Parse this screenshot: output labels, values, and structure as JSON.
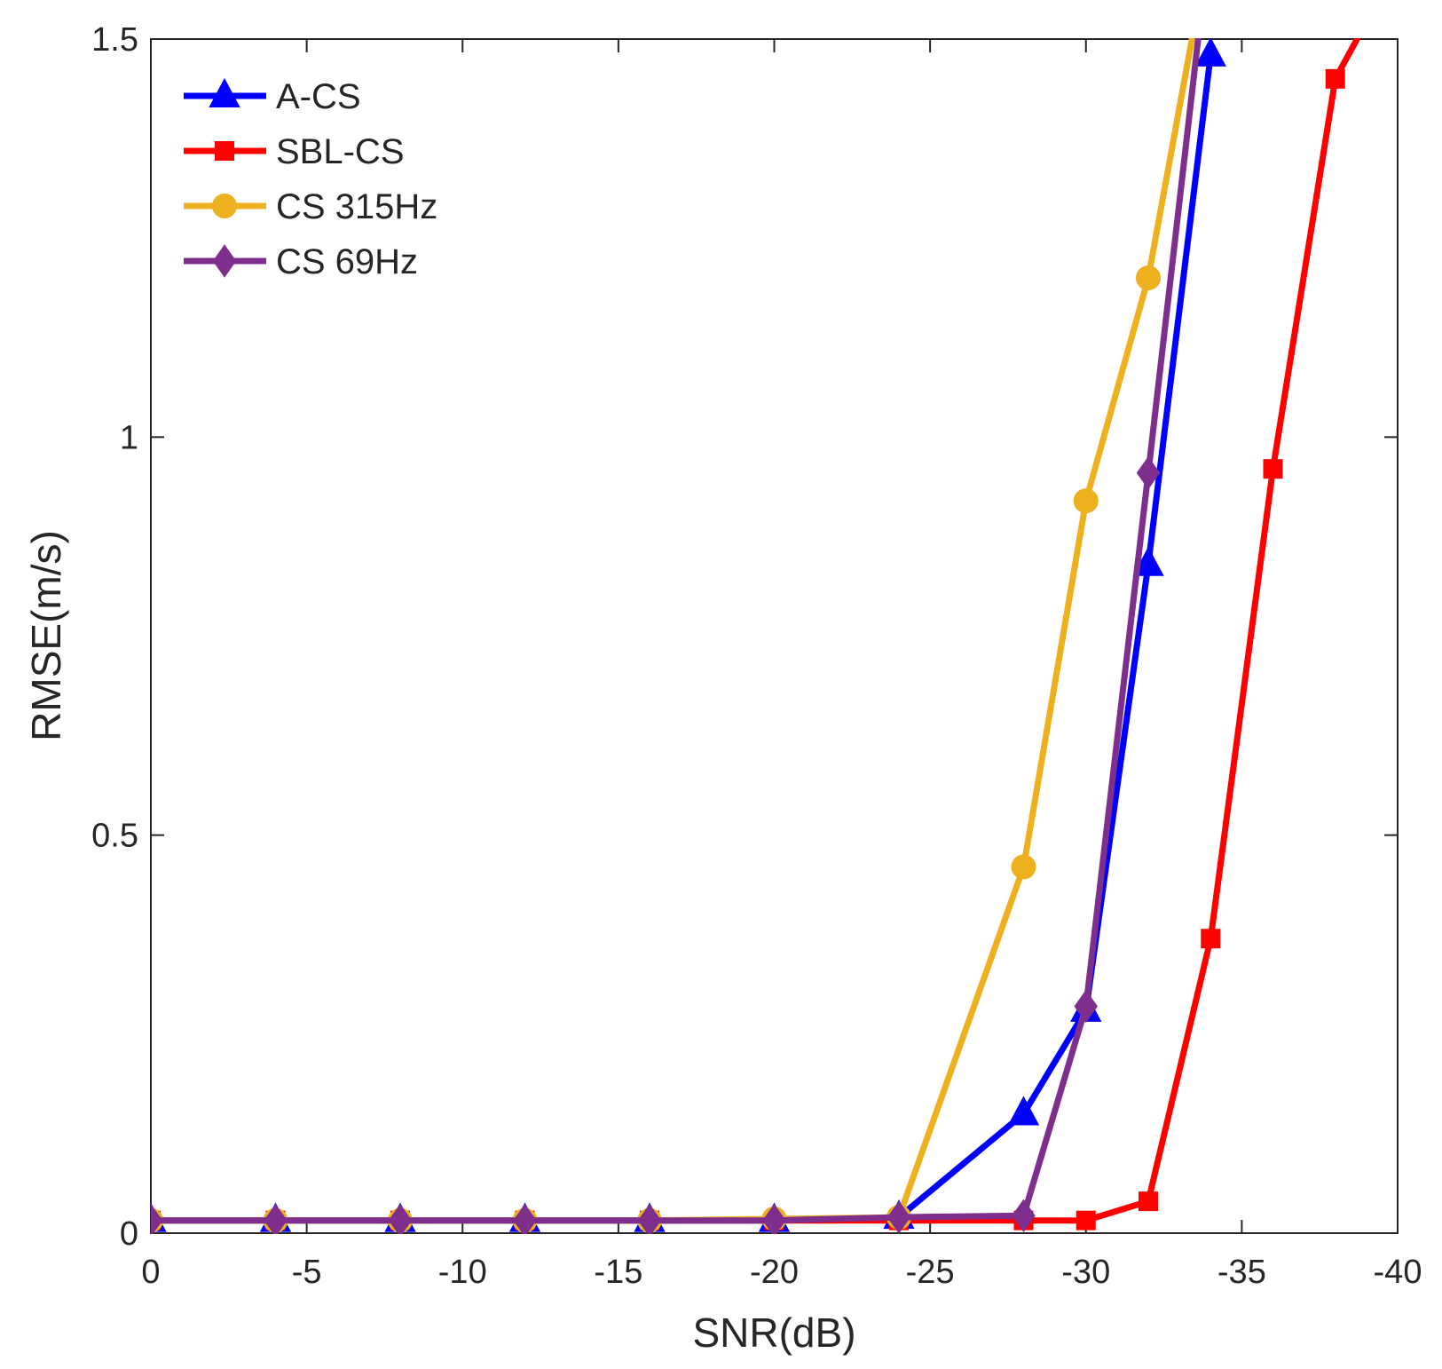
{
  "chart_data": {
    "type": "line",
    "title": "",
    "xlabel": "SNR(dB)",
    "ylabel": "RMSE(m/s)",
    "xlim": [
      0,
      -40
    ],
    "ylim": [
      0,
      1.5
    ],
    "xticks": [
      0,
      -5,
      -10,
      -15,
      -20,
      -25,
      -30,
      -35,
      -40
    ],
    "yticks": [
      0,
      0.5,
      1,
      1.5
    ],
    "xtick_labels": [
      "0",
      "-5",
      "-10",
      "-15",
      "-20",
      "-25",
      "-30",
      "-35",
      "-40"
    ],
    "ytick_labels": [
      "0",
      "0.5",
      "1",
      "1.5"
    ],
    "grid": false,
    "legend_position": "top-left",
    "series": [
      {
        "name": "A-CS",
        "color": "#0000ff",
        "marker": "triangle",
        "x": [
          0,
          -4,
          -8,
          -12,
          -16,
          -20,
          -24,
          -28,
          -30,
          -32,
          -34
        ],
        "y": [
          0.016,
          0.016,
          0.016,
          0.016,
          0.016,
          0.016,
          0.02,
          0.15,
          0.28,
          0.84,
          1.48
        ]
      },
      {
        "name": "SBL-CS",
        "color": "#ff0000",
        "marker": "square",
        "x": [
          0,
          -4,
          -8,
          -12,
          -16,
          -20,
          -24,
          -28,
          -30,
          -32,
          -34,
          -36,
          -38,
          -38.7
        ],
        "y": [
          0.016,
          0.016,
          0.016,
          0.016,
          0.016,
          0.016,
          0.016,
          0.016,
          0.016,
          0.04,
          0.37,
          0.96,
          1.45,
          1.5
        ]
      },
      {
        "name": "CS 315Hz",
        "color": "#edb120",
        "marker": "circle",
        "x": [
          0,
          -4,
          -8,
          -12,
          -16,
          -20,
          -24,
          -28,
          -30,
          -32,
          -33.4
        ],
        "y": [
          0.016,
          0.016,
          0.016,
          0.016,
          0.016,
          0.018,
          0.02,
          0.46,
          0.92,
          1.2,
          1.5
        ]
      },
      {
        "name": "CS 69Hz",
        "color": "#7e2f8e",
        "marker": "diamond",
        "x": [
          0,
          -4,
          -8,
          -12,
          -16,
          -20,
          -24,
          -28,
          -30,
          -32,
          -33.6
        ],
        "y": [
          0.016,
          0.016,
          0.016,
          0.016,
          0.016,
          0.016,
          0.02,
          0.022,
          0.285,
          0.955,
          1.5
        ]
      }
    ]
  }
}
